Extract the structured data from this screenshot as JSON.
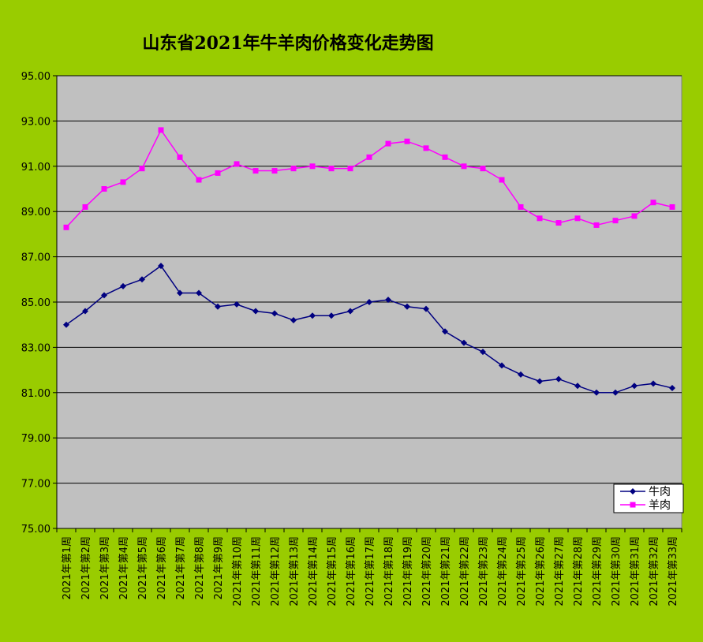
{
  "chart_data": {
    "type": "line",
    "title": "山东省2021年牛羊肉价格变化走势图",
    "xlabel": "",
    "ylabel": "",
    "ylim": [
      75,
      95
    ],
    "yticks": [
      "75.00",
      "77.00",
      "79.00",
      "81.00",
      "83.00",
      "85.00",
      "87.00",
      "89.00",
      "91.00",
      "93.00",
      "95.00"
    ],
    "grid": true,
    "legend_position": "bottom-right",
    "categories": [
      "2021年第1周",
      "2021年第2周",
      "2021年第3周",
      "2021年第4周",
      "2021年第5周",
      "2021年第6周",
      "2021年第7周",
      "2021年第8周",
      "2021年第9周",
      "2021年第10周",
      "2021年第11周",
      "2021年第12周",
      "2021年第13周",
      "2021年第14周",
      "2021年第15周",
      "2021年第16周",
      "2021年第17周",
      "2021年第18周",
      "2021年第19周",
      "2021年第20周",
      "2021年第21周",
      "2021年第22周",
      "2021年第23周",
      "2021年第24周",
      "2021年第25周",
      "2021年第26周",
      "2021年第27周",
      "2021年第28周",
      "2021年第29周",
      "2021年第30周",
      "2021年第31周",
      "2021年第32周",
      "2021年第33周"
    ],
    "series": [
      {
        "name": "牛肉",
        "color": "#000080",
        "marker": "diamond",
        "values": [
          84.0,
          84.6,
          85.3,
          85.7,
          86.0,
          86.6,
          85.4,
          85.4,
          84.8,
          84.9,
          84.6,
          84.5,
          84.2,
          84.4,
          84.4,
          84.6,
          85.0,
          85.1,
          84.8,
          84.7,
          83.7,
          83.2,
          82.8,
          82.2,
          81.8,
          81.5,
          81.6,
          81.3,
          81.0,
          81.0,
          81.3,
          81.4,
          81.2
        ]
      },
      {
        "name": "羊肉",
        "color": "#ff00ff",
        "marker": "square",
        "values": [
          88.3,
          89.2,
          90.0,
          90.3,
          90.9,
          92.6,
          91.4,
          90.4,
          90.7,
          91.1,
          90.8,
          90.8,
          90.9,
          91.0,
          90.9,
          90.9,
          91.4,
          92.0,
          92.1,
          91.8,
          91.4,
          91.0,
          90.9,
          90.4,
          89.2,
          88.7,
          88.5,
          88.7,
          88.4,
          88.6,
          88.8,
          89.4,
          89.2
        ]
      }
    ],
    "colors": {
      "background": "#99cc00",
      "plot_area": "#c0c0c0",
      "gridline": "#000000"
    }
  }
}
